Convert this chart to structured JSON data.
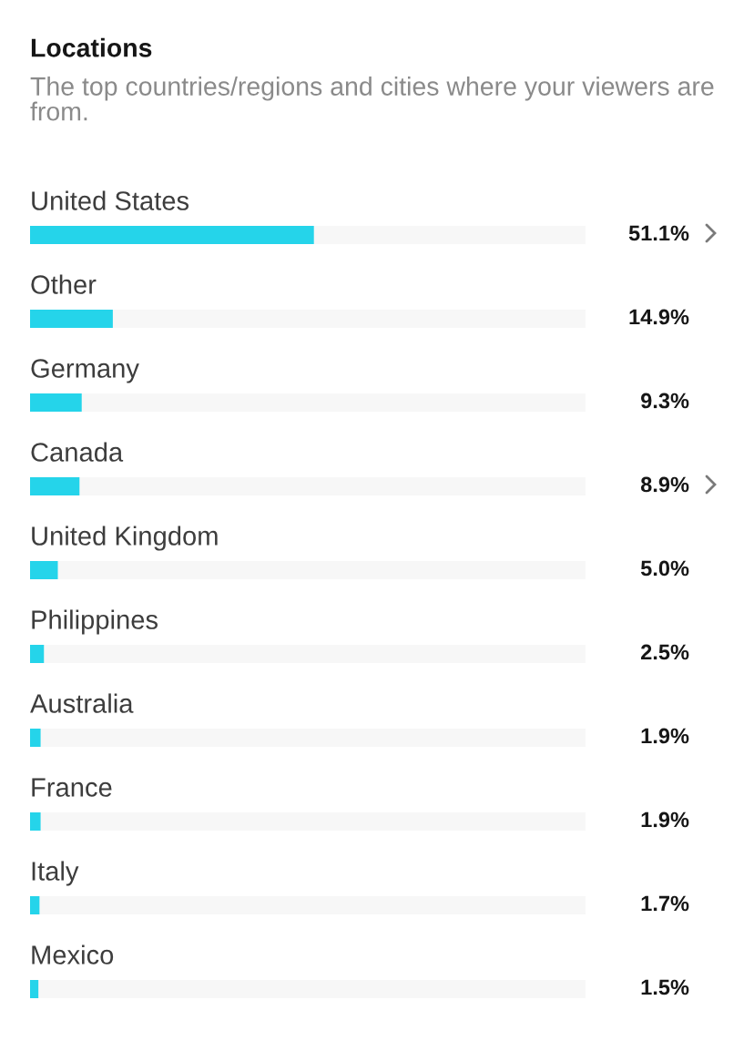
{
  "chart_data": {
    "type": "bar",
    "orientation": "horizontal",
    "title": "Locations",
    "subtitle": "The top countries/regions and cities where your viewers are from.",
    "categories": [
      "United States",
      "Other",
      "Germany",
      "Canada",
      "United Kingdom",
      "Philippines",
      "Australia",
      "France",
      "Italy",
      "Mexico"
    ],
    "values": [
      51.1,
      14.9,
      9.3,
      8.9,
      5.0,
      2.5,
      1.9,
      1.9,
      1.7,
      1.5
    ],
    "value_labels": [
      "51.1%",
      "14.9%",
      "9.3%",
      "8.9%",
      "5.0%",
      "2.5%",
      "1.9%",
      "1.9%",
      "1.7%",
      "1.5%"
    ],
    "color": "#25d4ea",
    "xlim": [
      0,
      100
    ],
    "tick_labels": "y"
  }
}
